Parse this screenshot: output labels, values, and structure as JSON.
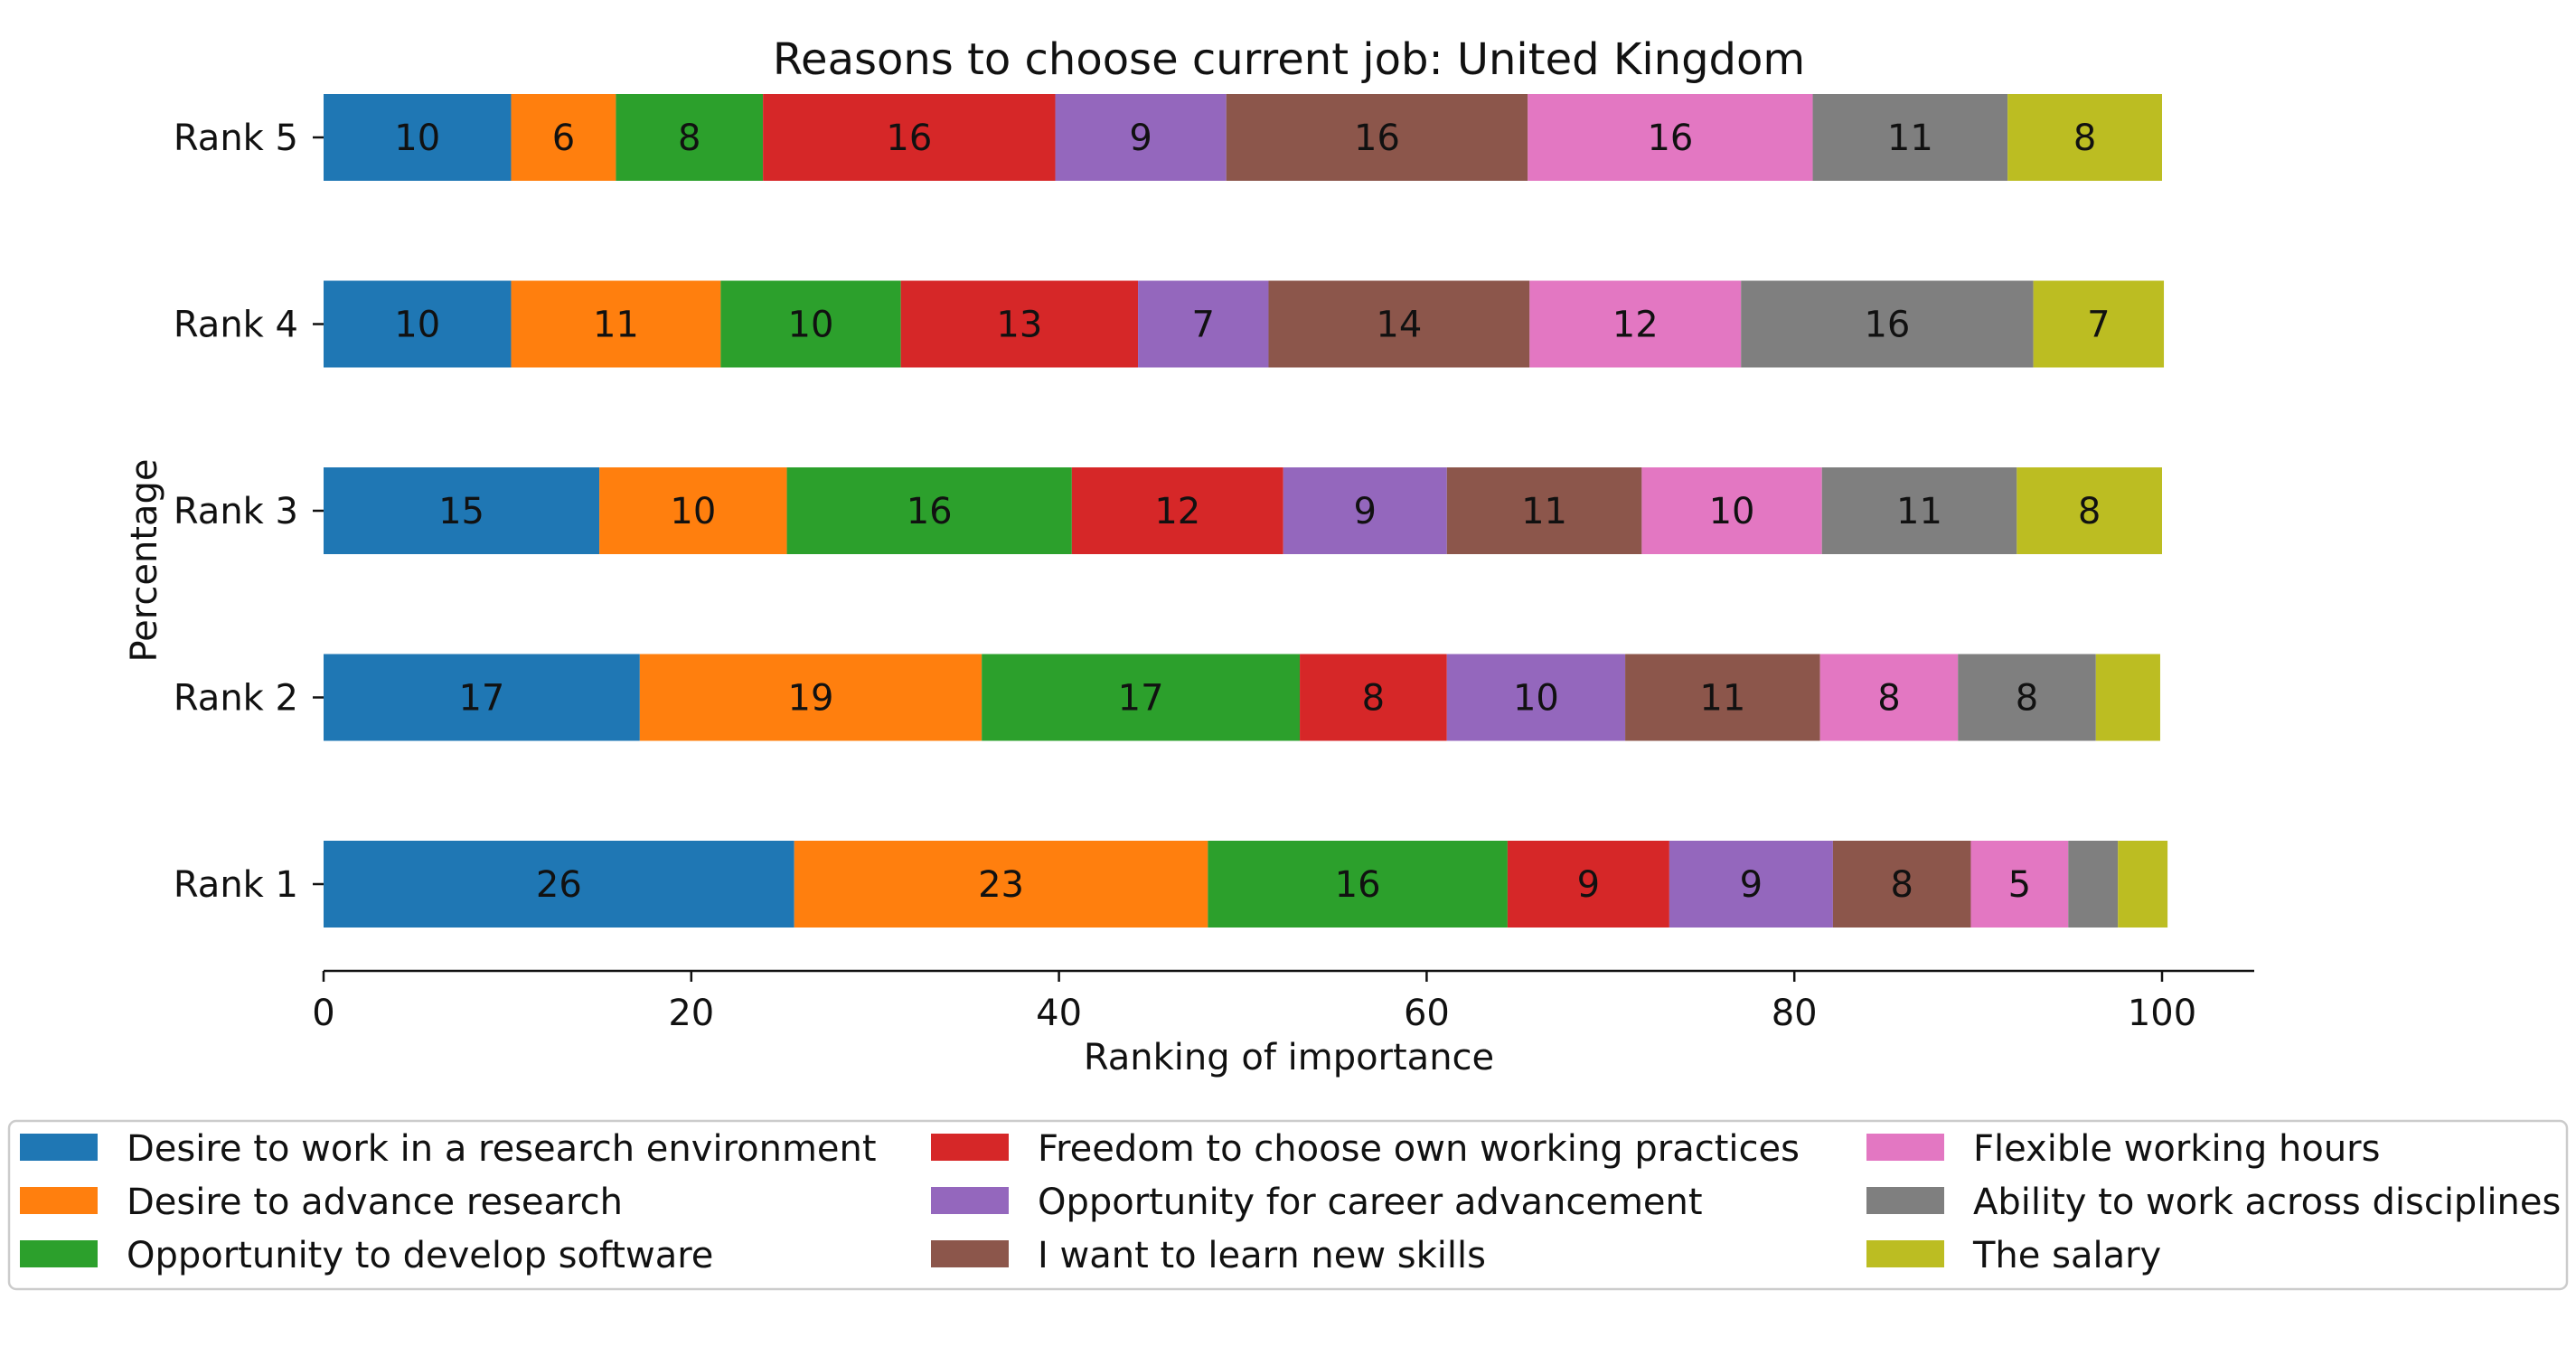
{
  "chart_data": {
    "type": "bar",
    "orientation": "horizontal",
    "stacked": true,
    "title": "Reasons to choose current job: United Kingdom",
    "xlabel": "Ranking of importance",
    "ylabel": "Percentage",
    "xlim": [
      0,
      100
    ],
    "xticks": [
      0,
      20,
      40,
      60,
      80,
      100
    ],
    "grid": false,
    "legend_position": "bottom",
    "categories": [
      "Rank 1",
      "Rank 2",
      "Rank 3",
      "Rank 4",
      "Rank 5"
    ],
    "series": [
      {
        "name": "Desire to work in a research environment",
        "color": "#1f77b4",
        "values": [
          25.6,
          17.2,
          15.0,
          10.2,
          10.2
        ]
      },
      {
        "name": "Desire to advance research",
        "color": "#ff7f0e",
        "values": [
          22.5,
          18.6,
          10.2,
          11.4,
          5.7
        ]
      },
      {
        "name": "Opportunity to develop software",
        "color": "#2ca02c",
        "values": [
          16.3,
          17.3,
          15.5,
          9.8,
          8.0
        ]
      },
      {
        "name": "Freedom to choose own working practices",
        "color": "#d62728",
        "values": [
          8.8,
          8.0,
          11.5,
          12.9,
          15.9
        ]
      },
      {
        "name": "Opportunity for career advancement",
        "color": "#9467bd",
        "values": [
          8.9,
          9.7,
          8.9,
          7.1,
          9.3
        ]
      },
      {
        "name": "I want to learn new skills",
        "color": "#8c564b",
        "values": [
          7.5,
          10.6,
          10.6,
          14.2,
          16.4
        ]
      },
      {
        "name": "Flexible working hours",
        "color": "#e377c2",
        "values": [
          5.3,
          7.5,
          9.8,
          11.5,
          15.5
        ]
      },
      {
        "name": "Ability to work across disciplines",
        "color": "#7f7f7f",
        "values": [
          2.7,
          7.5,
          10.6,
          15.9,
          10.6
        ]
      },
      {
        "name": "The salary",
        "color": "#bcbd22",
        "values": [
          2.7,
          3.5,
          7.9,
          7.1,
          8.4
        ]
      }
    ]
  }
}
